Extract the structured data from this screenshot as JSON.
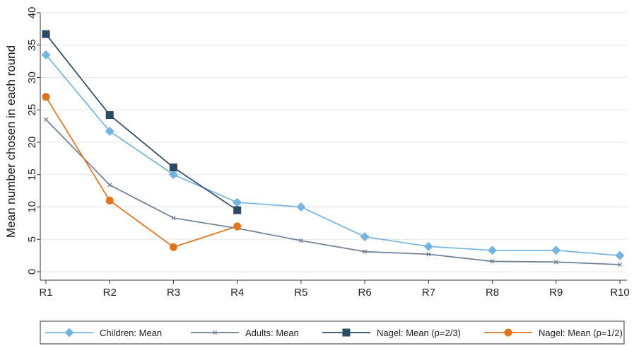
{
  "chart_data": {
    "type": "line",
    "title": "",
    "xlabel": "",
    "ylabel": "Mean number chosen in each round",
    "categories": [
      "R1",
      "R2",
      "R3",
      "R4",
      "R5",
      "R6",
      "R7",
      "R8",
      "R9",
      "R10"
    ],
    "ylim": [
      0,
      40
    ],
    "yticks": [
      0,
      5,
      10,
      15,
      20,
      25,
      30,
      35,
      40
    ],
    "grid": true,
    "legend_position": "bottom",
    "series": [
      {
        "name": "Children: Mean",
        "color": "#74b4e0",
        "marker": "diamond",
        "values": [
          33.5,
          21.7,
          15.0,
          10.7,
          10.0,
          5.4,
          3.9,
          3.3,
          3.3,
          2.5
        ]
      },
      {
        "name": "Adults: Mean",
        "color": "#6c7f94",
        "marker": "x",
        "values": [
          23.5,
          13.4,
          8.3,
          6.7,
          4.8,
          3.1,
          2.7,
          1.6,
          1.5,
          1.1
        ]
      },
      {
        "name": "Nagel: Mean (p=2/3)",
        "color": "#2c4a63",
        "marker": "square",
        "values": [
          36.7,
          24.2,
          16.1,
          9.5,
          null,
          null,
          null,
          null,
          null,
          null
        ]
      },
      {
        "name": "Nagel: Mean (p=1/2)",
        "color": "#e0731c",
        "marker": "circle",
        "values": [
          27.0,
          11.0,
          3.8,
          7.0,
          null,
          null,
          null,
          null,
          null,
          null
        ]
      }
    ]
  }
}
